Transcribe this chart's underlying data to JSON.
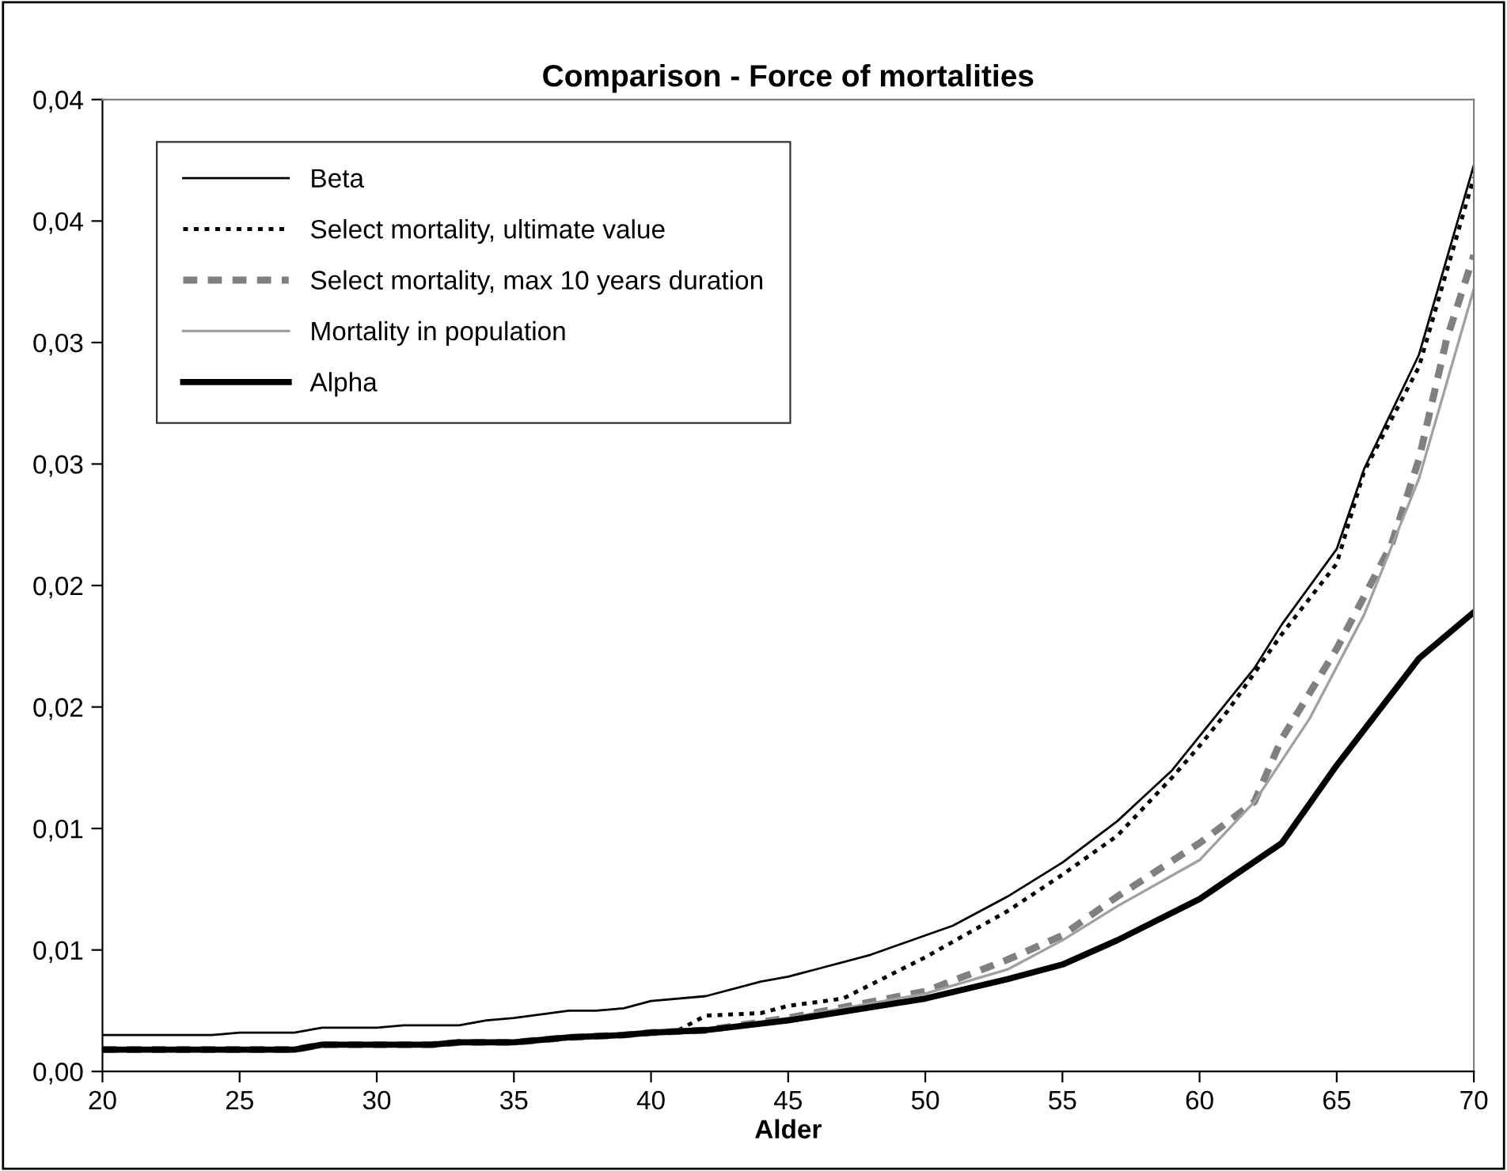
{
  "chart_data": {
    "type": "line",
    "title": "Comparison - Force of mortalities",
    "xlabel": "Alder",
    "xlim": [
      20,
      70
    ],
    "xticks": [
      20,
      25,
      30,
      35,
      40,
      45,
      50,
      55,
      60,
      65,
      70
    ],
    "ylim": [
      0,
      0.04
    ],
    "yticks": [
      {
        "value": 0,
        "label": "0,00"
      },
      {
        "value": 0.005,
        "label": "0,01"
      },
      {
        "value": 0.01,
        "label": "0,01"
      },
      {
        "value": 0.015,
        "label": "0,02"
      },
      {
        "value": 0.02,
        "label": "0,02"
      },
      {
        "value": 0.025,
        "label": "0,03"
      },
      {
        "value": 0.03,
        "label": "0,03"
      },
      {
        "value": 0.035,
        "label": "0,04"
      },
      {
        "value": 0.04,
        "label": "0,04"
      }
    ],
    "grid": false,
    "legend": "top left",
    "marker": "none",
    "series": [
      {
        "name": "Beta",
        "color": "#000000",
        "line_style": "solid",
        "x": [
          20,
          24,
          25,
          27,
          28,
          30,
          31,
          33,
          34,
          35,
          37,
          38,
          39,
          40,
          42,
          44,
          45,
          46,
          48,
          50,
          51,
          53,
          55,
          57,
          59,
          60,
          62,
          63,
          65,
          66,
          68,
          70
        ],
        "values": [
          0.0015,
          0.0015,
          0.0016,
          0.0016,
          0.0018,
          0.0018,
          0.0019,
          0.0019,
          0.0021,
          0.0022,
          0.0025,
          0.0025,
          0.0026,
          0.0029,
          0.0031,
          0.0037,
          0.0039,
          0.0042,
          0.0048,
          0.0056,
          0.006,
          0.0072,
          0.0086,
          0.0103,
          0.0124,
          0.0138,
          0.0166,
          0.0184,
          0.0215,
          0.0248,
          0.0295,
          0.0373
        ]
      },
      {
        "name": "Select mortality, ultimate value",
        "color": "#000000",
        "line_style": "dotted",
        "x": [
          20,
          27,
          28,
          32,
          33,
          35,
          37,
          39,
          40,
          41,
          42,
          44,
          45,
          47,
          50,
          53,
          55,
          57,
          59,
          60,
          61,
          63,
          65,
          66,
          68,
          70
        ],
        "values": [
          0.0009,
          0.0009,
          0.0011,
          0.0011,
          0.0012,
          0.0012,
          0.0014,
          0.0015,
          0.0016,
          0.0017,
          0.0023,
          0.0024,
          0.0027,
          0.003,
          0.0047,
          0.0066,
          0.0081,
          0.0097,
          0.0121,
          0.0134,
          0.0148,
          0.018,
          0.0209,
          0.0247,
          0.029,
          0.0368
        ]
      },
      {
        "name": "Select mortality, max 10 years duration",
        "color": "#808080",
        "line_style": "dashed",
        "x": [
          20,
          27,
          28,
          32,
          33,
          35,
          37,
          39,
          40,
          42,
          45,
          50,
          53,
          55,
          57,
          60,
          62,
          63,
          65,
          67,
          68,
          69,
          70
        ],
        "values": [
          0.0009,
          0.0009,
          0.0011,
          0.0011,
          0.0012,
          0.0012,
          0.0014,
          0.0015,
          0.0016,
          0.0017,
          0.0022,
          0.0033,
          0.0046,
          0.0056,
          0.0072,
          0.0094,
          0.0111,
          0.0137,
          0.0174,
          0.0217,
          0.0252,
          0.0301,
          0.0336
        ]
      },
      {
        "name": "Mortality in population",
        "color": "#a0a0a0",
        "line_style": "solid",
        "x": [
          27,
          28,
          32,
          33,
          35,
          37,
          39,
          40,
          42,
          45,
          50,
          53,
          55,
          57,
          60,
          62,
          64,
          66,
          68,
          70
        ],
        "values": [
          0.0009,
          0.0011,
          0.0011,
          0.0012,
          0.0012,
          0.0014,
          0.0015,
          0.0016,
          0.0017,
          0.0022,
          0.0032,
          0.0042,
          0.0054,
          0.0068,
          0.0087,
          0.0111,
          0.0145,
          0.0188,
          0.0244,
          0.0322
        ]
      },
      {
        "name": "Alpha",
        "color": "#000000",
        "line_style": "solid",
        "x": [
          20,
          27,
          28,
          32,
          33,
          35,
          37,
          39,
          40,
          42,
          45,
          50,
          53,
          55,
          57,
          60,
          63,
          65,
          68,
          70
        ],
        "values": [
          0.0009,
          0.0009,
          0.0011,
          0.0011,
          0.0012,
          0.0012,
          0.0014,
          0.0015,
          0.0016,
          0.0017,
          0.0021,
          0.003,
          0.0038,
          0.0044,
          0.0054,
          0.0071,
          0.0094,
          0.0126,
          0.017,
          0.0189
        ]
      }
    ]
  }
}
